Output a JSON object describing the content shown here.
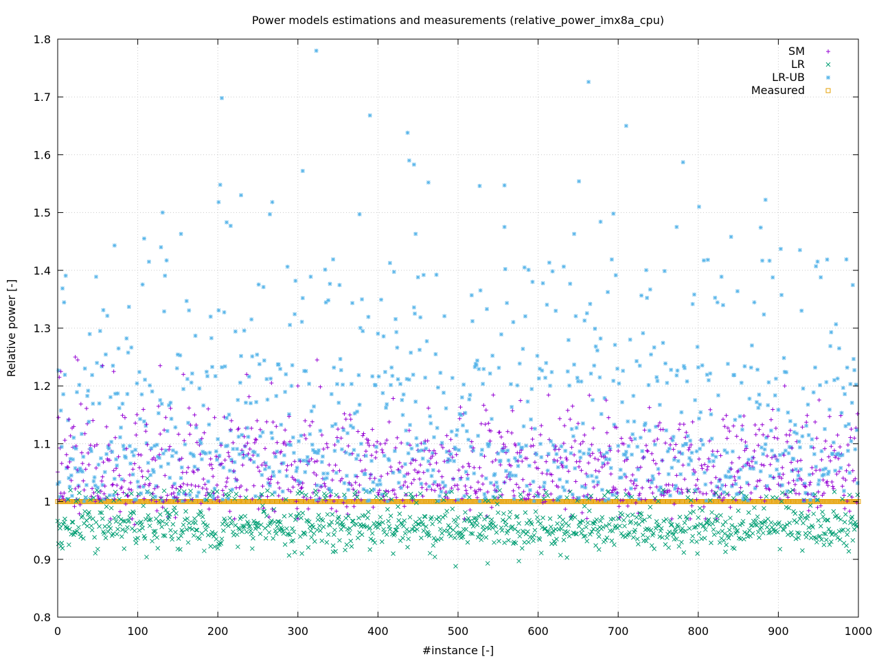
{
  "chart_data": {
    "type": "scatter",
    "title": "Power models estimations and measurements (relative_power_imx8a_cpu)",
    "xlabel": "#instance [-]",
    "ylabel": "Relative power [-]",
    "xlim": [
      0,
      1000
    ],
    "ylim": [
      0.8,
      1.8
    ],
    "x_ticks": [
      "0",
      "100",
      "200",
      "300",
      "400",
      "500",
      "600",
      "700",
      "800",
      "900",
      "1000"
    ],
    "y_ticks": [
      "0.8",
      "0.9",
      "1",
      "1.1",
      "1.2",
      "1.3",
      "1.4",
      "1.5",
      "1.6",
      "1.7",
      "1.8"
    ],
    "grid": true,
    "legend_position": "top-right",
    "instances": 1000,
    "series": [
      {
        "name": "SM",
        "marker": "plus",
        "color": "#9400d3",
        "typical_range": [
          0.96,
          1.25
        ],
        "points": [
          [
            4,
            1.225
          ],
          [
            2,
            1.215
          ],
          [
            22,
            1.25
          ],
          [
            25,
            1.245
          ],
          [
            56,
            1.235
          ],
          [
            70,
            1.225
          ],
          [
            128,
            1.235
          ],
          [
            157,
            1.22
          ],
          [
            236,
            1.22
          ],
          [
            267,
            1.205
          ],
          [
            300,
            1.2
          ],
          [
            324,
            1.245
          ],
          [
            96,
            0.96
          ]
        ]
      },
      {
        "name": "LR",
        "marker": "cross",
        "color": "#009e73",
        "typical_range": [
          0.89,
          1.04
        ],
        "points": [
          [
            497,
            0.888
          ],
          [
            537,
            0.893
          ],
          [
            576,
            0.897
          ],
          [
            305,
            0.91
          ],
          [
            344,
            0.913
          ],
          [
            390,
            0.917
          ],
          [
            636,
            0.903
          ],
          [
            676,
            0.917
          ],
          [
            799,
            0.91
          ],
          [
            834,
            0.913
          ],
          [
            957,
            0.925
          ],
          [
            112,
            1.04
          ]
        ]
      },
      {
        "name": "LR-UB",
        "marker": "star",
        "color": "#56b4e9",
        "typical_range": [
          0.95,
          1.46
        ],
        "points": [
          [
            323,
            1.78
          ],
          [
            205,
            1.698
          ],
          [
            663,
            1.726
          ],
          [
            390,
            1.668
          ],
          [
            710,
            1.65
          ],
          [
            437,
            1.638
          ],
          [
            439,
            1.59
          ],
          [
            445,
            1.583
          ],
          [
            306,
            1.572
          ],
          [
            781,
            1.587
          ],
          [
            463,
            1.552
          ],
          [
            558,
            1.547
          ],
          [
            527,
            1.546
          ],
          [
            651,
            1.554
          ],
          [
            203,
            1.548
          ],
          [
            201,
            1.518
          ],
          [
            229,
            1.53
          ],
          [
            268,
            1.518
          ],
          [
            131,
            1.5
          ],
          [
            377,
            1.497
          ],
          [
            265,
            1.497
          ],
          [
            694,
            1.498
          ],
          [
            884,
            1.522
          ],
          [
            801,
            1.51
          ],
          [
            211,
            1.483
          ],
          [
            216,
            1.477
          ],
          [
            678,
            1.484
          ],
          [
            773,
            1.475
          ],
          [
            558,
            1.475
          ],
          [
            71,
            1.443
          ],
          [
            154,
            1.463
          ],
          [
            108,
            1.455
          ],
          [
            129,
            1.44
          ],
          [
            447,
            1.463
          ],
          [
            645,
            1.463
          ],
          [
            878,
            1.474
          ],
          [
            841,
            1.458
          ],
          [
            927,
            1.435
          ],
          [
            947,
            1.407
          ],
          [
            903,
            1.437
          ]
        ]
      },
      {
        "name": "Measured",
        "marker": "square",
        "color": "#e69f00",
        "value": 1.0
      }
    ]
  }
}
